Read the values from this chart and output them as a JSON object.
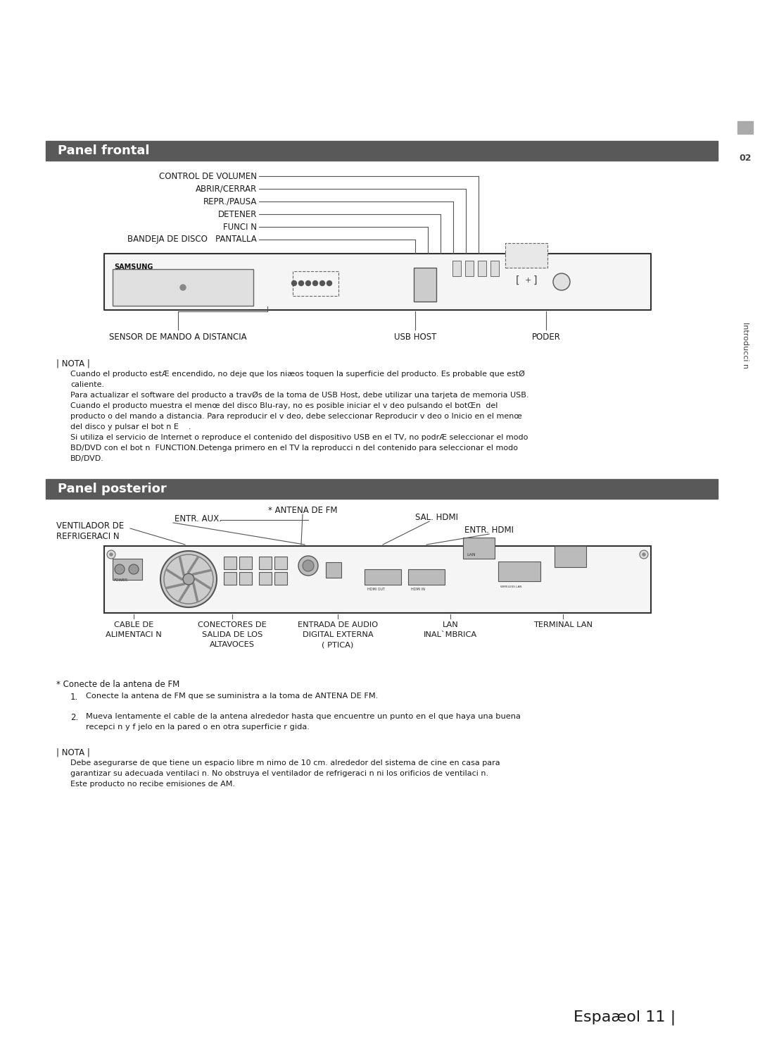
{
  "bg_color": "#ffffff",
  "header_bg": "#595959",
  "header_text_color": "#ffffff",
  "body_text_color": "#1a1a1a",
  "line_color": "#555555",
  "device_fill": "#f5f5f5",
  "device_edge": "#333333",
  "panel_frontal_title": "Panel frontal",
  "panel_posterior_title": "Panel posterior",
  "sidebar_block_color": "#999999",
  "sidebar_number": "02",
  "sidebar_label": "Introducci n",
  "front_labels_left": [
    "CONTROL DE VOLUMEN",
    "ABRIR/CERRAR",
    "REPR./PAUSA",
    "DETENER",
    "FUNCI N"
  ],
  "front_label_double": "BANDEJA DE DISCO   PANTALLA",
  "front_labels_bottom": [
    "SENSOR DE MANDO A DISTANCIA",
    "USB HOST",
    "PODER"
  ],
  "note1_title": "| NOTA |",
  "note1_lines": [
    "Cuando el producto estÆ encendido, no deje que los niæos toquen la superficie del producto. Es probable que estØ",
    "caliente.",
    "Para actualizar el software del producto a travØs de la toma de USB Host, debe utilizar una tarjeta de memoria USB.",
    "Cuando el producto muestra el menœ del disco Blu-ray, no es posible iniciar el v deo pulsando el botŒn  del",
    "producto o del mando a distancia. Para reproducir el v deo, debe seleccionar Reproducir v deo o Inicio en el menœ",
    "del disco y pulsar el bot n E    .",
    "Si utiliza el servicio de Internet o reproduce el contenido del dispositivo USB en el TV, no podrÆ seleccionar el modo",
    "BD/DVD con el bot n  FUNCTION.Detenga primero en el TV la reproducci n del contenido para seleccionar el modo",
    "BD/DVD."
  ],
  "rear_labels_bottom": [
    "CABLE DE\nALIMENTACI N",
    "CONECTORES DE\nSALIDA DE LOS\nALTAVOCES",
    "ENTRADA DE AUDIO\nDIGITAL EXTERNA\n( PTICA)",
    "LAN\nINAL`MBRICA",
    "TERMINAL LAN"
  ],
  "fm_note_title": "* Conecte de la antena de FM",
  "fm_steps": [
    "Conecte la antena de FM que se suministra a la toma de ANTENA DE FM.",
    "Mueva lentamente el cable de la antena alrededor hasta que encuentre un punto en el que haya una buena\nrecepci n y f jelo en la pared o en otra superficie r gida."
  ],
  "note2_title": "| NOTA |",
  "note2_lines": [
    "Debe asegurarse de que tiene un espacio libre m nimo de 10 cm. alrededor del sistema de cine en casa para",
    "garantizar su adecuada ventilaci n. No obstruya el ventilador de refrigeraci n ni los orificios de ventilaci n.",
    "Este producto no recibe emisiones de AM."
  ],
  "footer_text": "Espaæol 11 |"
}
